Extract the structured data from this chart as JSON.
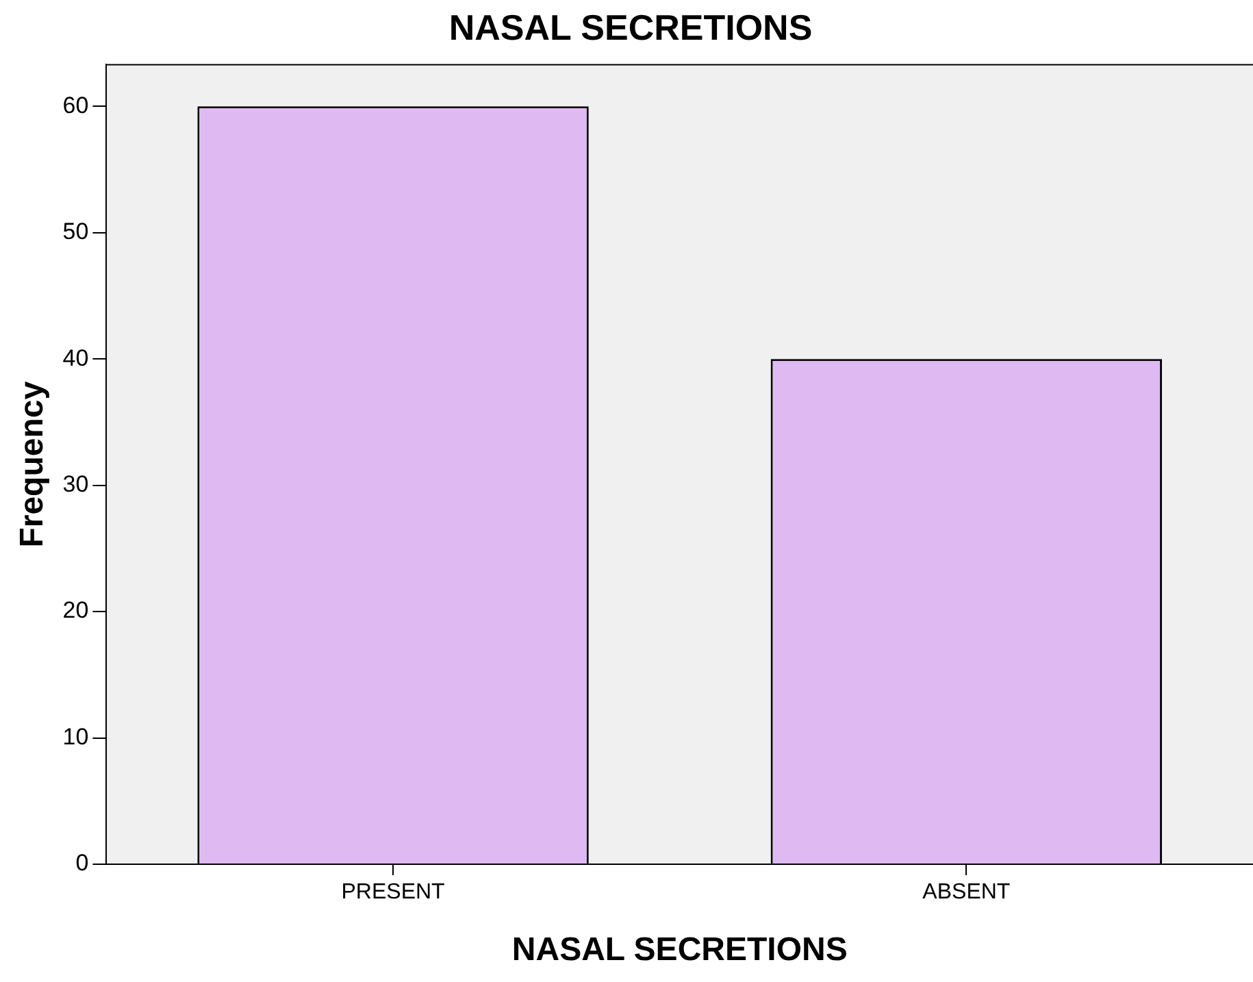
{
  "chart_data": {
    "type": "bar",
    "title": "NASAL SECRETIONS",
    "xlabel": "NASAL SECRETIONS",
    "ylabel": "Frequency",
    "categories": [
      "PRESENT",
      "ABSENT"
    ],
    "values": [
      60,
      40
    ],
    "color": "#dfb9f1",
    "ylim": [
      0,
      63.3
    ],
    "yticks": [
      0,
      10,
      20,
      30,
      40,
      50,
      60
    ],
    "grid": false,
    "legend": false
  }
}
